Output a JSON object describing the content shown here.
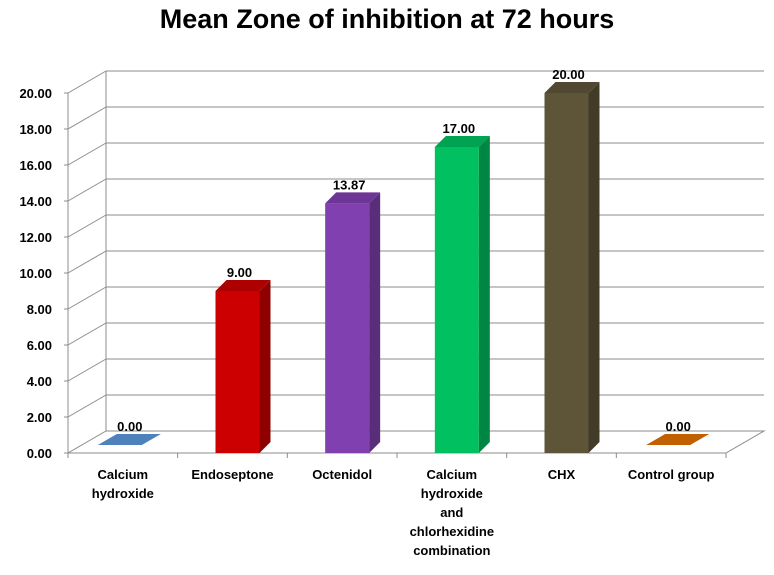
{
  "chart_data": {
    "type": "bar",
    "title": "Mean Zone of inhibition at 72 hours",
    "categories": [
      "Calcium hydroxide",
      "Endoseptone",
      "Octenidol",
      "Calcium hydroxide and chlorhexidine combination",
      "CHX",
      "Control group"
    ],
    "values": [
      0.0,
      9.0,
      13.87,
      17.0,
      20.0,
      0.0
    ],
    "value_labels": [
      "0.00",
      "9.00",
      "13.87",
      "17.00",
      "20.00",
      "0.00"
    ],
    "category_label_lines": [
      [
        "Calcium",
        "hydroxide"
      ],
      [
        "Endoseptone"
      ],
      [
        "Octenidol"
      ],
      [
        "Calcium",
        "hydroxide",
        "and",
        "chlorhexidine",
        "combination"
      ],
      [
        "CHX"
      ],
      [
        "Control group"
      ]
    ],
    "yticks": [
      "0.00",
      "2.00",
      "4.00",
      "6.00",
      "8.00",
      "10.00",
      "12.00",
      "14.00",
      "16.00",
      "18.00",
      "20.00"
    ],
    "ylim": [
      0,
      20
    ],
    "grid": true,
    "bar_colors": [
      "#4F81BD",
      "#CC0000",
      "#8040B0",
      "#00C060",
      "#5E5538",
      "#C06000"
    ]
  }
}
